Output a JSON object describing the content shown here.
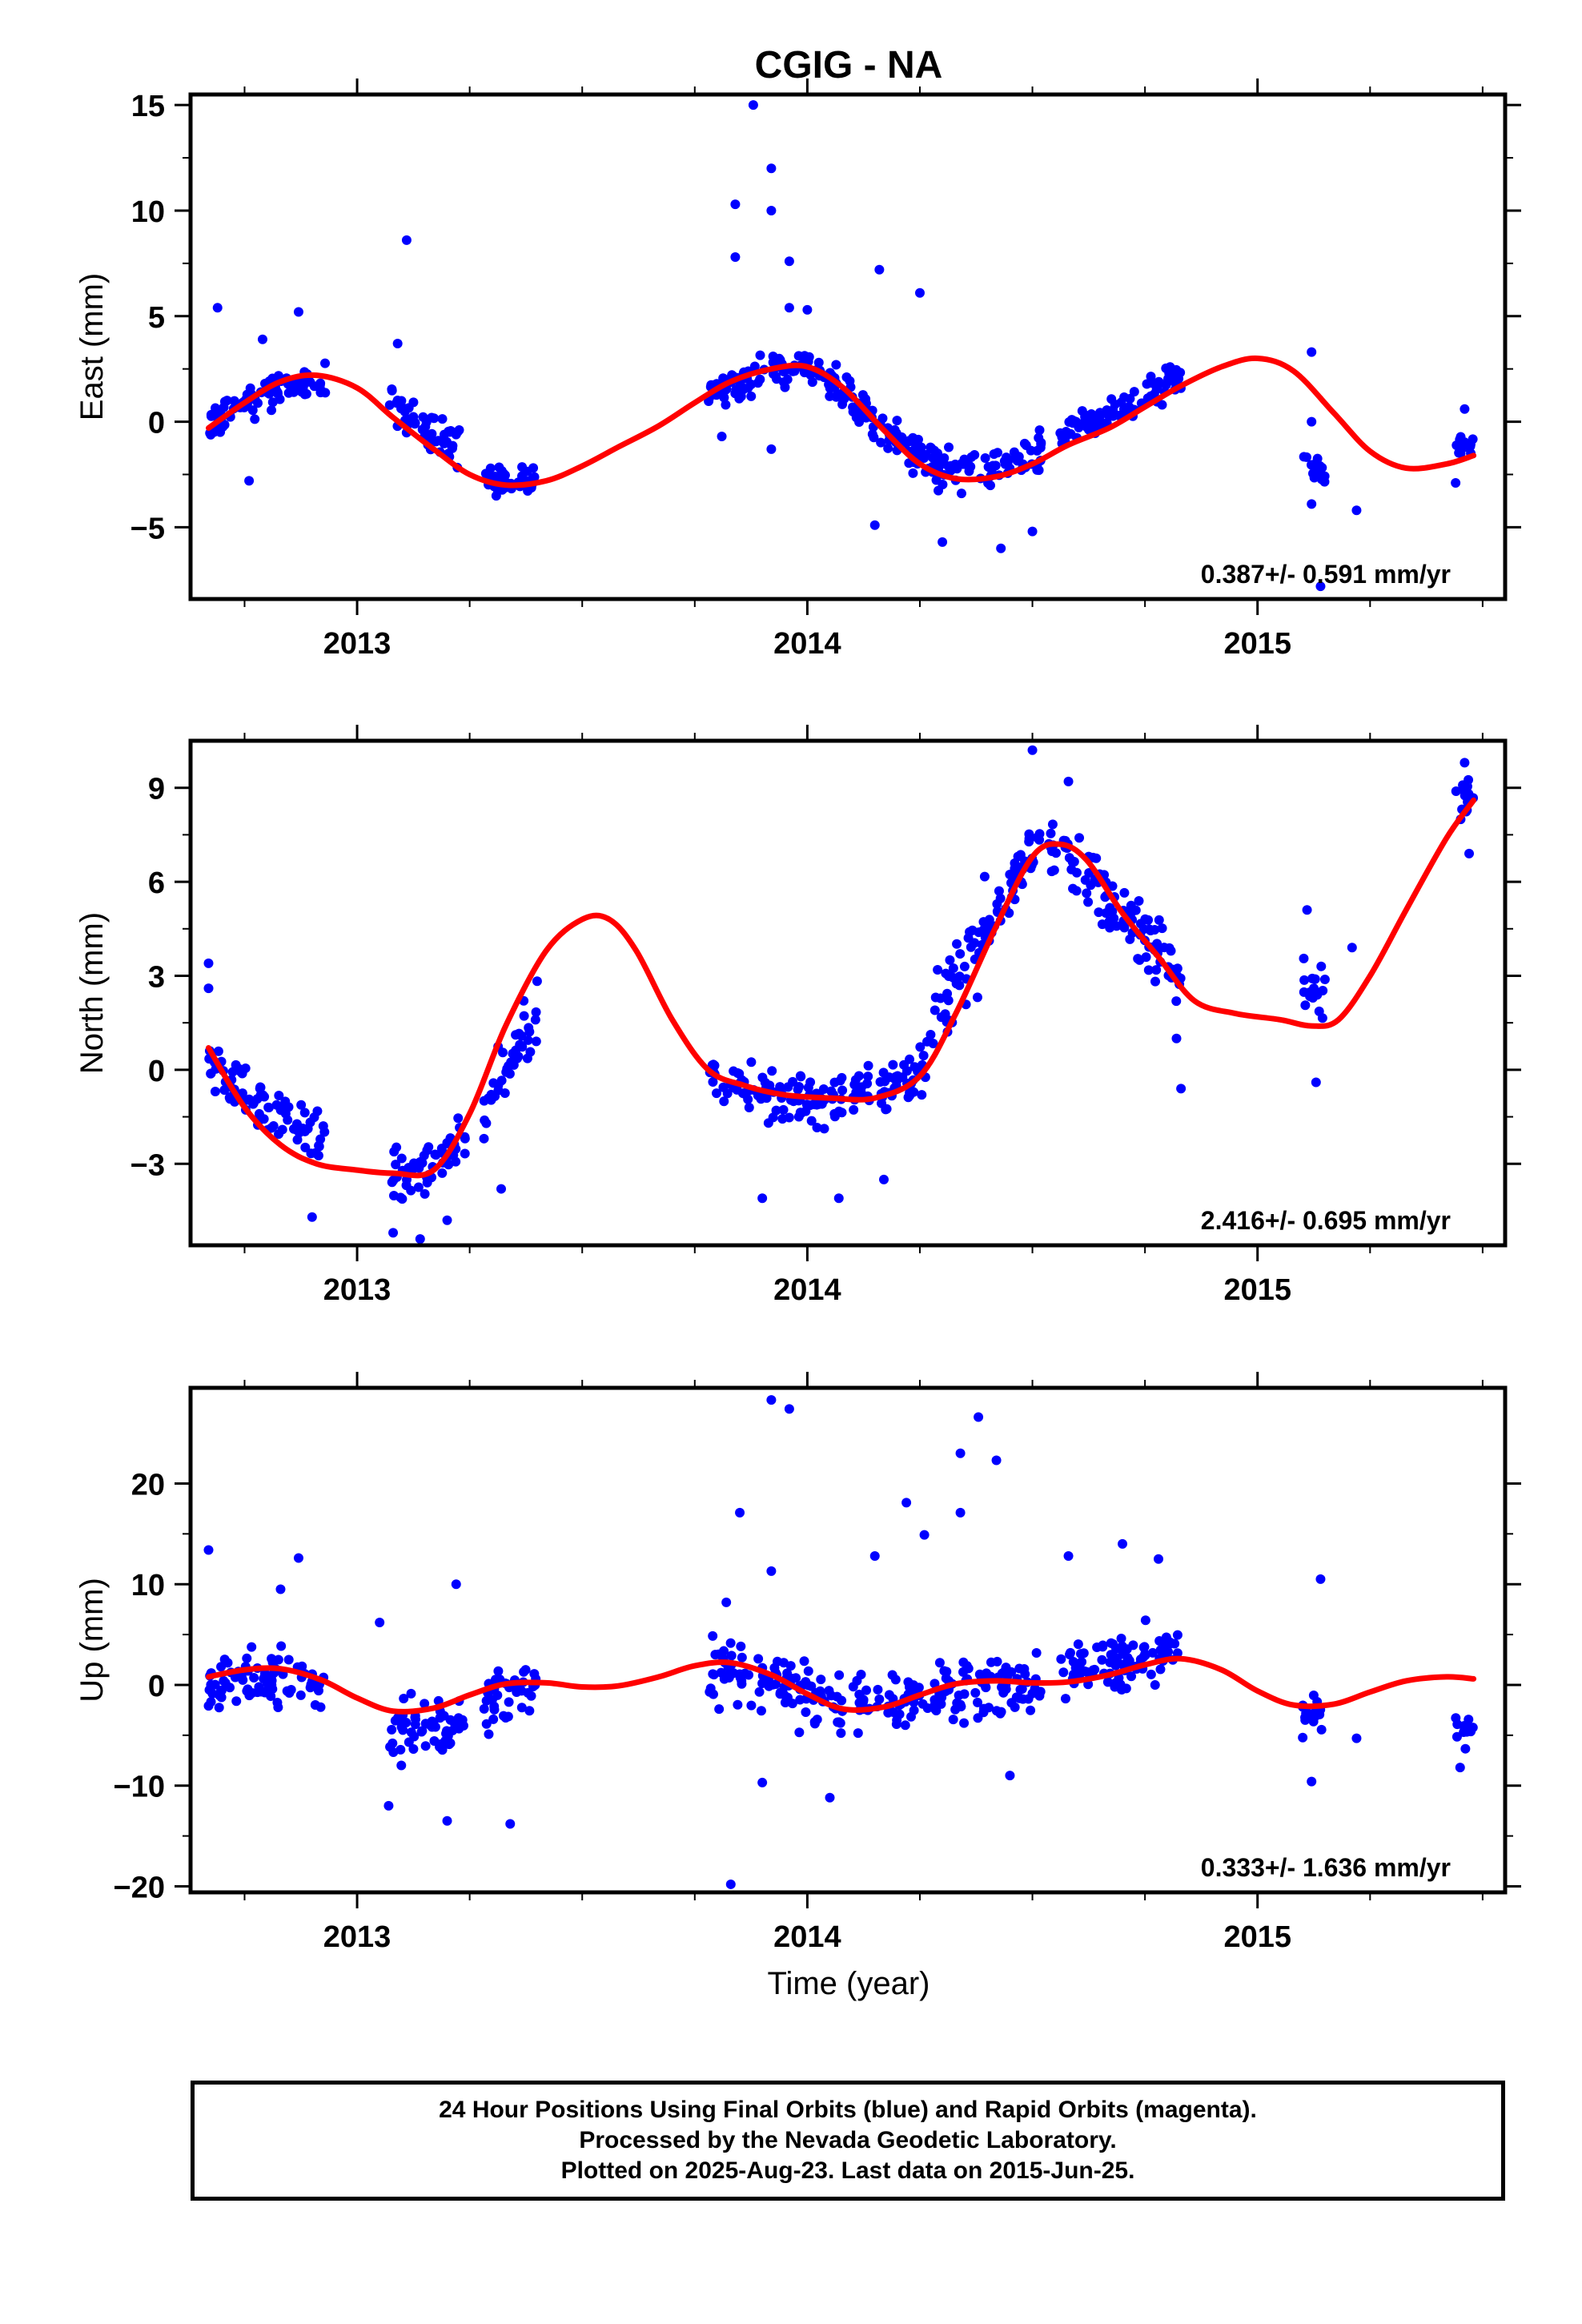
{
  "title": "CGIG - NA",
  "footer": {
    "line1": "24 Hour Positions Using Final Orbits (blue) and Rapid Orbits (magenta).",
    "line2": "Processed by the Nevada Geodetic Laboratory.",
    "line3": "Plotted on 2025-Aug-23. Last data on 2015-Jun-25."
  },
  "colors": {
    "points": "#0000ff",
    "fit": "#ff0000",
    "axes": "#000000"
  },
  "chart_data": [
    {
      "type": "scatter",
      "ylabel": "East (mm)",
      "xlabel": "",
      "xlim": [
        2012.63,
        2015.55
      ],
      "ylim": [
        -8.4,
        15.5
      ],
      "yticks": [
        15,
        10,
        5,
        0,
        -5
      ],
      "ytick_labels": [
        "15",
        "10",
        "5",
        "0",
        "−5"
      ],
      "xticks": [
        2013,
        2014,
        2015
      ],
      "xtick_labels": [
        "2013",
        "2014",
        "2015"
      ],
      "rate_label": "0.387+/- 0.591 mm/yr",
      "grid": false,
      "series": [
        {
          "kind": "points",
          "segments": [
            {
              "x": [
                2012.67,
                2012.93
              ],
              "center": 1.3,
              "spread": 1.2
            },
            {
              "x": [
                2013.07,
                2013.23
              ],
              "center": -0.3,
              "spread": 1.6
            },
            {
              "x": [
                2013.28,
                2013.4
              ],
              "center": -2.9,
              "spread": 1.0
            },
            {
              "x": [
                2013.78,
                2014.1
              ],
              "center": 2.4,
              "spread": 1.3
            },
            {
              "x": [
                2014.1,
                2014.52
              ],
              "center": -2.2,
              "spread": 1.5
            },
            {
              "x": [
                2014.56,
                2014.83
              ],
              "center": 0.7,
              "spread": 1.1
            },
            {
              "x": [
                2015.1,
                2015.15
              ],
              "center": -2.2,
              "spread": 1.0
            },
            {
              "x": [
                2015.44,
                2015.48
              ],
              "center": -1.0,
              "spread": 1.1
            }
          ],
          "outliers": [
            {
              "x": 2012.69,
              "y": 5.4
            },
            {
              "x": 2012.79,
              "y": 3.9
            },
            {
              "x": 2012.87,
              "y": 5.2
            },
            {
              "x": 2012.76,
              "y": -2.8
            },
            {
              "x": 2013.11,
              "y": 8.6
            },
            {
              "x": 2013.09,
              "y": 3.7
            },
            {
              "x": 2013.84,
              "y": 10.3
            },
            {
              "x": 2013.84,
              "y": 7.8
            },
            {
              "x": 2013.88,
              "y": 15.0
            },
            {
              "x": 2013.92,
              "y": 12.0
            },
            {
              "x": 2013.92,
              "y": 10.0
            },
            {
              "x": 2013.96,
              "y": 7.6
            },
            {
              "x": 2013.96,
              "y": 5.4
            },
            {
              "x": 2014.0,
              "y": 5.3
            },
            {
              "x": 2013.81,
              "y": -0.7
            },
            {
              "x": 2013.92,
              "y": -1.3
            },
            {
              "x": 2014.16,
              "y": 7.2
            },
            {
              "x": 2014.25,
              "y": 6.1
            },
            {
              "x": 2014.15,
              "y": -4.9
            },
            {
              "x": 2014.3,
              "y": -5.7
            },
            {
              "x": 2014.43,
              "y": -6.0
            },
            {
              "x": 2014.5,
              "y": -5.2
            },
            {
              "x": 2015.12,
              "y": 3.3
            },
            {
              "x": 2015.12,
              "y": 0.0
            },
            {
              "x": 2015.12,
              "y": -3.9
            },
            {
              "x": 2015.22,
              "y": -4.2
            },
            {
              "x": 2015.14,
              "y": -7.8
            },
            {
              "x": 2015.46,
              "y": 0.6
            },
            {
              "x": 2015.44,
              "y": -2.9
            }
          ]
        },
        {
          "kind": "fit",
          "x": [
            2012.67,
            2012.75,
            2012.83,
            2012.91,
            2013.0,
            2013.08,
            2013.17,
            2013.25,
            2013.33,
            2013.42,
            2013.5,
            2013.58,
            2013.67,
            2013.75,
            2013.83,
            2013.92,
            2014.0,
            2014.08,
            2014.17,
            2014.25,
            2014.33,
            2014.42,
            2014.5,
            2014.58,
            2014.67,
            2014.75,
            2014.83,
            2014.92,
            2015.0,
            2015.08,
            2015.17,
            2015.25,
            2015.33,
            2015.42,
            2015.48
          ],
          "y": [
            -0.3,
            0.9,
            1.9,
            2.2,
            1.6,
            0.2,
            -1.3,
            -2.5,
            -3.0,
            -2.8,
            -2.1,
            -1.2,
            -0.2,
            0.9,
            1.9,
            2.5,
            2.6,
            1.6,
            -0.4,
            -2.0,
            -2.7,
            -2.6,
            -2.0,
            -1.1,
            -0.3,
            0.7,
            1.7,
            2.6,
            3.0,
            2.4,
            0.4,
            -1.4,
            -2.2,
            -2.0,
            -1.6
          ]
        }
      ]
    },
    {
      "type": "scatter",
      "ylabel": "North (mm)",
      "xlabel": "",
      "xlim": [
        2012.63,
        2015.55
      ],
      "ylim": [
        -5.6,
        10.5
      ],
      "yticks": [
        9,
        6,
        3,
        0,
        -3
      ],
      "ytick_labels": [
        "9",
        "6",
        "3",
        "0",
        "−3"
      ],
      "xticks": [
        2013,
        2014,
        2015
      ],
      "xtick_labels": [
        "2013",
        "2014",
        "2015"
      ],
      "rate_label": "2.416+/- 0.695 mm/yr",
      "grid": false,
      "series": [
        {
          "kind": "points",
          "segments": [
            {
              "x": [
                2012.67,
                2012.73
              ],
              "center": -0.2,
              "spread": 1.3
            },
            {
              "x": [
                2012.73,
                2012.93
              ],
              "center": -1.6,
              "spread": 1.2
            },
            {
              "x": [
                2013.07,
                2013.24
              ],
              "center": -3.3,
              "spread": 1.2
            },
            {
              "x": [
                2013.28,
                2013.4
              ],
              "center": 0.2,
              "spread": 1.6
            },
            {
              "x": [
                2013.78,
                2014.08
              ],
              "center": -0.8,
              "spread": 1.2
            },
            {
              "x": [
                2014.1,
                2014.28
              ],
              "center": -0.4,
              "spread": 1.3
            },
            {
              "x": [
                2014.28,
                2014.42
              ],
              "center": 3.5,
              "spread": 2.2
            },
            {
              "x": [
                2014.42,
                2014.58
              ],
              "center": 7.0,
              "spread": 1.2
            },
            {
              "x": [
                2014.58,
                2014.83
              ],
              "center": 4.8,
              "spread": 1.6
            },
            {
              "x": [
                2015.1,
                2015.15
              ],
              "center": 2.6,
              "spread": 1.2
            },
            {
              "x": [
                2015.44,
                2015.48
              ],
              "center": 8.6,
              "spread": 1.0
            }
          ],
          "outliers": [
            {
              "x": 2012.67,
              "y": 3.4
            },
            {
              "x": 2012.67,
              "y": 2.6
            },
            {
              "x": 2012.9,
              "y": -4.7
            },
            {
              "x": 2013.08,
              "y": -5.2
            },
            {
              "x": 2013.14,
              "y": -5.4
            },
            {
              "x": 2013.2,
              "y": -4.8
            },
            {
              "x": 2013.32,
              "y": -3.8
            },
            {
              "x": 2013.37,
              "y": 2.2
            },
            {
              "x": 2013.9,
              "y": -4.1
            },
            {
              "x": 2014.07,
              "y": -4.1
            },
            {
              "x": 2014.17,
              "y": -3.5
            },
            {
              "x": 2014.5,
              "y": 10.2
            },
            {
              "x": 2014.58,
              "y": 9.2
            },
            {
              "x": 2014.82,
              "y": 1.0
            },
            {
              "x": 2014.83,
              "y": -0.6
            },
            {
              "x": 2015.11,
              "y": 5.1
            },
            {
              "x": 2015.13,
              "y": -0.4
            },
            {
              "x": 2015.21,
              "y": 3.9
            },
            {
              "x": 2015.46,
              "y": 9.8
            },
            {
              "x": 2015.47,
              "y": 6.9
            }
          ]
        },
        {
          "kind": "fit",
          "x": [
            2012.67,
            2012.75,
            2012.83,
            2012.91,
            2013.0,
            2013.08,
            2013.17,
            2013.25,
            2013.33,
            2013.42,
            2013.5,
            2013.56,
            2013.62,
            2013.7,
            2013.78,
            2013.86,
            2013.95,
            2014.05,
            2014.15,
            2014.25,
            2014.33,
            2014.42,
            2014.5,
            2014.56,
            2014.62,
            2014.7,
            2014.78,
            2014.86,
            2014.95,
            2015.05,
            2015.12,
            2015.18,
            2015.25,
            2015.33,
            2015.42,
            2015.48
          ],
          "y": [
            0.7,
            -1.2,
            -2.4,
            -3.0,
            -3.2,
            -3.3,
            -3.2,
            -1.4,
            1.4,
            3.8,
            4.8,
            4.8,
            3.8,
            1.6,
            0.0,
            -0.5,
            -0.8,
            -0.9,
            -0.9,
            -0.2,
            1.8,
            4.6,
            6.8,
            7.2,
            6.7,
            5.0,
            3.6,
            2.2,
            1.8,
            1.6,
            1.4,
            1.6,
            3.0,
            5.1,
            7.4,
            8.6
          ]
        }
      ]
    },
    {
      "type": "scatter",
      "ylabel": "Up (mm)",
      "xlabel": "Time (year)",
      "xlim": [
        2012.63,
        2015.55
      ],
      "ylim": [
        -20.6,
        29.5
      ],
      "yticks": [
        20,
        10,
        0,
        -10,
        -20
      ],
      "ytick_labels": [
        "20",
        "10",
        "0",
        "−10",
        "−20"
      ],
      "xticks": [
        2013,
        2014,
        2015
      ],
      "xtick_labels": [
        "2013",
        "2014",
        "2015"
      ],
      "rate_label": "0.333+/- 1.636 mm/yr",
      "grid": false,
      "series": [
        {
          "kind": "points",
          "segments": [
            {
              "x": [
                2012.67,
                2012.93
              ],
              "center": 0.6,
              "spread": 4.2
            },
            {
              "x": [
                2013.07,
                2013.24
              ],
              "center": -4.5,
              "spread": 5.0
            },
            {
              "x": [
                2013.28,
                2013.4
              ],
              "center": -1.0,
              "spread": 4.0
            },
            {
              "x": [
                2013.78,
                2014.08
              ],
              "center": 0.5,
              "spread": 4.6
            },
            {
              "x": [
                2014.1,
                2014.52
              ],
              "center": -0.5,
              "spread": 4.2
            },
            {
              "x": [
                2014.56,
                2014.83
              ],
              "center": 2.5,
              "spread": 4.0
            },
            {
              "x": [
                2015.1,
                2015.15
              ],
              "center": -3.0,
              "spread": 3.0
            },
            {
              "x": [
                2015.44,
                2015.48
              ],
              "center": -4.5,
              "spread": 3.0
            }
          ],
          "outliers": [
            {
              "x": 2012.67,
              "y": 13.4
            },
            {
              "x": 2012.87,
              "y": 12.6
            },
            {
              "x": 2012.83,
              "y": 9.5
            },
            {
              "x": 2013.05,
              "y": 6.2
            },
            {
              "x": 2013.07,
              "y": -12.0
            },
            {
              "x": 2013.2,
              "y": -13.5
            },
            {
              "x": 2013.22,
              "y": 10.0
            },
            {
              "x": 2013.34,
              "y": -13.8
            },
            {
              "x": 2013.92,
              "y": 28.3
            },
            {
              "x": 2013.96,
              "y": 27.4
            },
            {
              "x": 2013.85,
              "y": 17.1
            },
            {
              "x": 2013.92,
              "y": 11.3
            },
            {
              "x": 2013.82,
              "y": 8.2
            },
            {
              "x": 2013.83,
              "y": -19.8
            },
            {
              "x": 2013.9,
              "y": -9.7
            },
            {
              "x": 2014.05,
              "y": -11.2
            },
            {
              "x": 2014.15,
              "y": 12.8
            },
            {
              "x": 2014.22,
              "y": 18.1
            },
            {
              "x": 2014.26,
              "y": 14.9
            },
            {
              "x": 2014.34,
              "y": 23.0
            },
            {
              "x": 2014.34,
              "y": 17.1
            },
            {
              "x": 2014.38,
              "y": 26.6
            },
            {
              "x": 2014.42,
              "y": 22.3
            },
            {
              "x": 2014.45,
              "y": -9.0
            },
            {
              "x": 2014.58,
              "y": 12.8
            },
            {
              "x": 2014.7,
              "y": 14.0
            },
            {
              "x": 2014.78,
              "y": 12.5
            },
            {
              "x": 2015.12,
              "y": -9.6
            },
            {
              "x": 2015.14,
              "y": 10.5
            },
            {
              "x": 2015.22,
              "y": -5.3
            },
            {
              "x": 2015.45,
              "y": -8.2
            }
          ]
        },
        {
          "kind": "fit",
          "x": [
            2012.67,
            2012.75,
            2012.83,
            2012.92,
            2013.0,
            2013.08,
            2013.17,
            2013.25,
            2013.33,
            2013.42,
            2013.5,
            2013.58,
            2013.67,
            2013.75,
            2013.83,
            2013.92,
            2014.0,
            2014.08,
            2014.17,
            2014.25,
            2014.33,
            2014.42,
            2014.5,
            2014.58,
            2014.67,
            2014.75,
            2014.83,
            2014.92,
            2015.0,
            2015.08,
            2015.17,
            2015.25,
            2015.33,
            2015.42,
            2015.48
          ],
          "y": [
            0.8,
            1.5,
            1.6,
            0.5,
            -1.3,
            -2.6,
            -2.3,
            -1.0,
            0.1,
            0.2,
            -0.2,
            -0.1,
            0.8,
            1.9,
            2.2,
            1.0,
            -0.9,
            -2.4,
            -2.2,
            -1.0,
            0.1,
            0.4,
            0.2,
            0.3,
            1.0,
            2.0,
            2.6,
            1.5,
            -0.6,
            -2.0,
            -1.9,
            -0.7,
            0.4,
            0.8,
            0.6
          ]
        }
      ]
    }
  ]
}
